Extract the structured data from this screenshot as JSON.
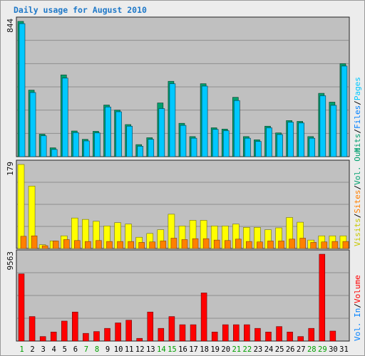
{
  "title": "Daily usage for August 2010",
  "colors": {
    "hits": "#00c8ff",
    "files": "#00c8ff",
    "files_back": "#00a06e",
    "pages": "#00c8ff",
    "visits": "#ffff00",
    "sites": "#ff8000",
    "volume": "#ff0000",
    "weekend_label": "#00a000",
    "weekday_label": "#000000"
  },
  "legend": {
    "top": [
      "Hits",
      "/",
      "Files",
      "/",
      "Pages"
    ],
    "middle": [
      "Visits",
      "/",
      "Sites",
      "/",
      "Vol. Out"
    ],
    "bottom": [
      "Vol. In",
      "/",
      "Volume"
    ]
  },
  "chart_data": [
    {
      "type": "bar",
      "panel": "top",
      "ymax_label": "844",
      "ylim": [
        0,
        844
      ],
      "categories": [
        "1",
        "2",
        "3",
        "4",
        "5",
        "6",
        "7",
        "8",
        "9",
        "10",
        "11",
        "12",
        "13",
        "14",
        "15",
        "16",
        "17",
        "18",
        "19",
        "20",
        "21",
        "22",
        "23",
        "24",
        "25",
        "26",
        "27",
        "28",
        "29",
        "30",
        "31"
      ],
      "weekend": [
        1,
        7,
        8,
        14,
        15,
        21,
        22,
        28,
        29
      ],
      "series": [
        {
          "name": "Hits",
          "values": [
            844,
            415,
            140,
            55,
            510,
            160,
            108,
            158,
            322,
            290,
            200,
            75,
            118,
            335,
            470,
            208,
            125,
            455,
            180,
            172,
            370,
            125,
            105,
            190,
            148,
            225,
            220,
            125,
            395,
            340,
            580
          ]
        },
        {
          "name": "Files",
          "values": [
            830,
            400,
            130,
            45,
            490,
            150,
            98,
            148,
            310,
            280,
            190,
            65,
            108,
            300,
            455,
            195,
            115,
            440,
            170,
            162,
            350,
            115,
            95,
            180,
            138,
            215,
            210,
            115,
            380,
            320,
            565
          ]
        },
        {
          "name": "Pages",
          "values": [
            0,
            0,
            0,
            0,
            0,
            0,
            0,
            0,
            0,
            0,
            0,
            0,
            0,
            0,
            0,
            0,
            0,
            0,
            0,
            0,
            0,
            0,
            0,
            0,
            0,
            0,
            0,
            0,
            0,
            0,
            0
          ]
        }
      ]
    },
    {
      "type": "bar",
      "panel": "middle",
      "ymax_label": "179",
      "ylim": [
        0,
        179
      ],
      "categories": [
        "1",
        "2",
        "3",
        "4",
        "5",
        "6",
        "7",
        "8",
        "9",
        "10",
        "11",
        "12",
        "13",
        "14",
        "15",
        "16",
        "17",
        "18",
        "19",
        "20",
        "21",
        "22",
        "23",
        "24",
        "25",
        "26",
        "27",
        "28",
        "29",
        "30",
        "31"
      ],
      "series": [
        {
          "name": "Visits",
          "values": [
            179,
            133,
            8,
            16,
            27,
            65,
            62,
            58,
            48,
            55,
            52,
            24,
            32,
            40,
            73,
            48,
            60,
            60,
            48,
            48,
            52,
            45,
            45,
            40,
            44,
            66,
            56,
            18,
            27,
            27,
            27
          ]
        },
        {
          "name": "Sites",
          "values": [
            26,
            27,
            6,
            16,
            19,
            17,
            15,
            17,
            15,
            15,
            15,
            13,
            14,
            16,
            22,
            19,
            21,
            21,
            18,
            17,
            20,
            15,
            14,
            16,
            16,
            20,
            22,
            13,
            14,
            15,
            15
          ]
        },
        {
          "name": "Vol. Out",
          "values": [
            0,
            0,
            0,
            0,
            0,
            0,
            0,
            0,
            0,
            0,
            0,
            0,
            0,
            0,
            0,
            0,
            0,
            0,
            0,
            0,
            0,
            0,
            0,
            0,
            0,
            0,
            0,
            0,
            0,
            0,
            0
          ]
        }
      ]
    },
    {
      "type": "bar",
      "panel": "bottom",
      "ymax_label": "9563",
      "ylim": [
        0,
        9563
      ],
      "categories": [
        "1",
        "2",
        "3",
        "4",
        "5",
        "6",
        "7",
        "8",
        "9",
        "10",
        "11",
        "12",
        "13",
        "14",
        "15",
        "16",
        "17",
        "18",
        "19",
        "20",
        "21",
        "22",
        "23",
        "24",
        "25",
        "26",
        "27",
        "28",
        "29",
        "30",
        "31"
      ],
      "series": [
        {
          "name": "Vol. In",
          "values": [
            0,
            0,
            0,
            0,
            0,
            0,
            0,
            0,
            0,
            0,
            0,
            0,
            0,
            0,
            0,
            0,
            0,
            0,
            0,
            0,
            0,
            0,
            0,
            0,
            0,
            0,
            0,
            0,
            0,
            0,
            0
          ]
        },
        {
          "name": "Volume",
          "values": [
            7400,
            2700,
            500,
            1000,
            2200,
            3200,
            850,
            1050,
            1400,
            2000,
            2300,
            300,
            3200,
            1400,
            2700,
            1800,
            1800,
            5300,
            1000,
            1800,
            1800,
            1800,
            1400,
            1000,
            1600,
            1000,
            500,
            1400,
            9563,
            1100,
            0
          ]
        }
      ]
    }
  ]
}
